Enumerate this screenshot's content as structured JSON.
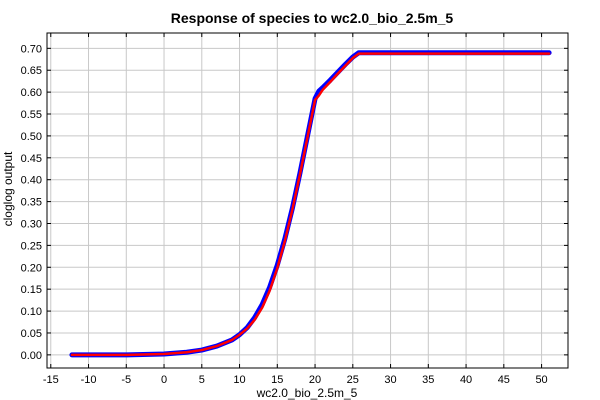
{
  "chart_data": {
    "type": "line",
    "title": "Response of species to wc2.0_bio_2.5m_5",
    "xlabel": "wc2.0_bio_2.5m_5",
    "ylabel": "cloglog output",
    "xlim": [
      -15.5,
      53.5
    ],
    "ylim": [
      -0.03,
      0.735
    ],
    "x_ticks": [
      -15,
      -10,
      -5,
      0,
      5,
      10,
      15,
      20,
      25,
      30,
      35,
      40,
      45,
      50
    ],
    "y_ticks": [
      0.0,
      0.05,
      0.1,
      0.15,
      0.2,
      0.25,
      0.3,
      0.35,
      0.4,
      0.45,
      0.5,
      0.55,
      0.6,
      0.65,
      0.7
    ],
    "grid": true,
    "series": [
      {
        "color": "#0000ff",
        "x": [
          -12.2,
          -5,
          0,
          3,
          5,
          7,
          9,
          10,
          11,
          12,
          13,
          14,
          15,
          16,
          17,
          18,
          19,
          20,
          20.5,
          21,
          22,
          23,
          24,
          25,
          25.8,
          30,
          40,
          51
        ],
        "y": [
          0.0,
          0.0,
          0.002,
          0.006,
          0.011,
          0.02,
          0.034,
          0.046,
          0.062,
          0.085,
          0.115,
          0.155,
          0.205,
          0.265,
          0.335,
          0.415,
          0.5,
          0.585,
          0.602,
          0.61,
          0.627,
          0.645,
          0.663,
          0.68,
          0.69,
          0.69,
          0.69,
          0.69
        ]
      },
      {
        "color": "#ff0000",
        "x": [
          -12.2,
          -5,
          0,
          3,
          5,
          7,
          9,
          10,
          11,
          12,
          13,
          14,
          15,
          16,
          17,
          18,
          19,
          20,
          20.5,
          21,
          22,
          23,
          24,
          25,
          25.8,
          30,
          40,
          51
        ],
        "y": [
          0.0,
          0.0,
          0.002,
          0.006,
          0.011,
          0.02,
          0.034,
          0.046,
          0.06,
          0.08,
          0.108,
          0.147,
          0.198,
          0.26,
          0.332,
          0.412,
          0.497,
          0.582,
          0.592,
          0.605,
          0.623,
          0.642,
          0.66,
          0.678,
          0.688,
          0.688,
          0.688,
          0.688
        ]
      }
    ]
  }
}
